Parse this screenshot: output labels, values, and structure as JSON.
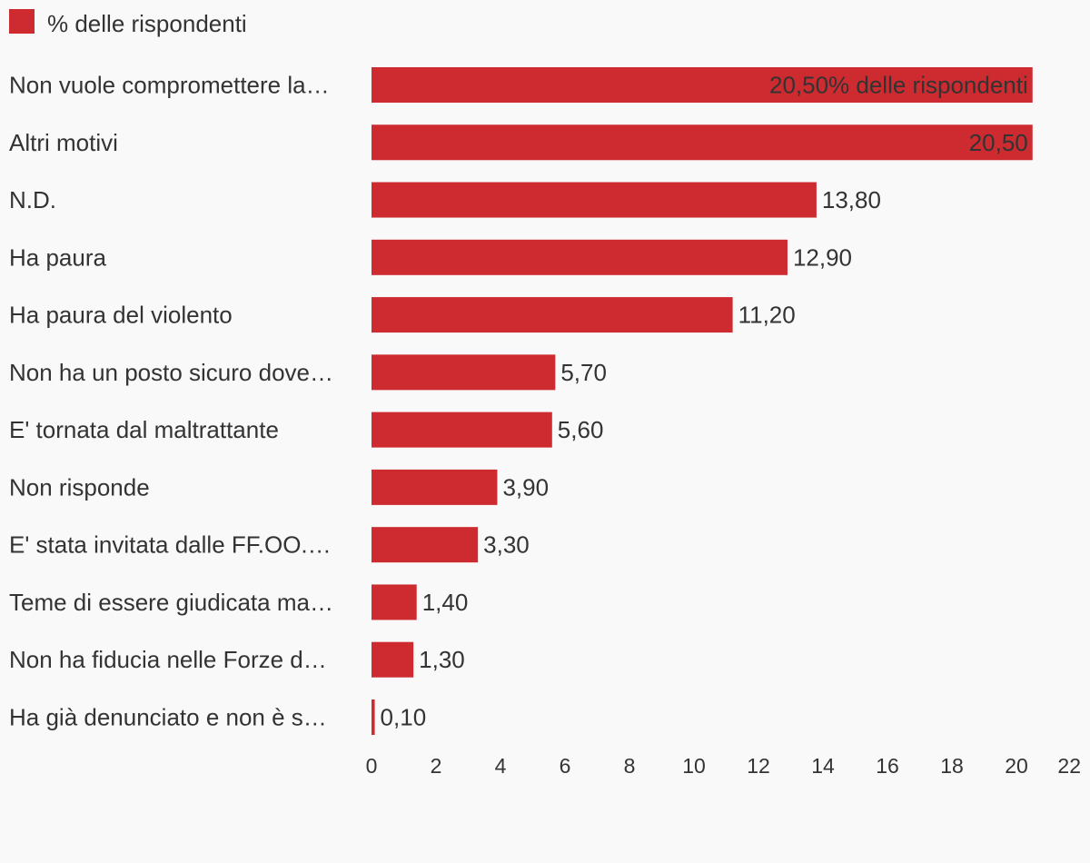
{
  "legend": {
    "label": "% delle rispondenti"
  },
  "colors": {
    "bar": "#cd2b30",
    "text": "#333333",
    "background": "#f9f9f9"
  },
  "chart_data": {
    "type": "bar",
    "orientation": "horizontal",
    "categories": [
      "Non vuole compromettere la…",
      "Altri motivi",
      "N.D.",
      "Ha paura",
      "Ha paura del violento",
      "Non ha un posto sicuro dove…",
      "E' tornata dal maltrattante",
      "Non risponde",
      "E' stata invitata dalle FF.OO.…",
      "Teme di essere giudicata ma…",
      "Non ha fiducia nelle Forze d…",
      "Ha già denunciato e non è s…"
    ],
    "series": [
      {
        "name": "% delle rispondenti",
        "values": [
          20.5,
          20.5,
          13.8,
          12.9,
          11.2,
          5.7,
          5.6,
          3.9,
          3.3,
          1.4,
          1.3,
          0.1
        ]
      }
    ],
    "value_labels": [
      "20,50% delle rispondenti",
      "20,50",
      "13,80",
      "12,90",
      "11,20",
      "5,70",
      "5,60",
      "3,90",
      "3,30",
      "1,40",
      "1,30",
      "0,10"
    ],
    "x_ticks": [
      "0",
      "2",
      "4",
      "6",
      "8",
      "10",
      "12",
      "14",
      "16",
      "18",
      "20",
      "22"
    ],
    "xlim": [
      0,
      22
    ],
    "grid": false,
    "legend_position": "top-left"
  }
}
